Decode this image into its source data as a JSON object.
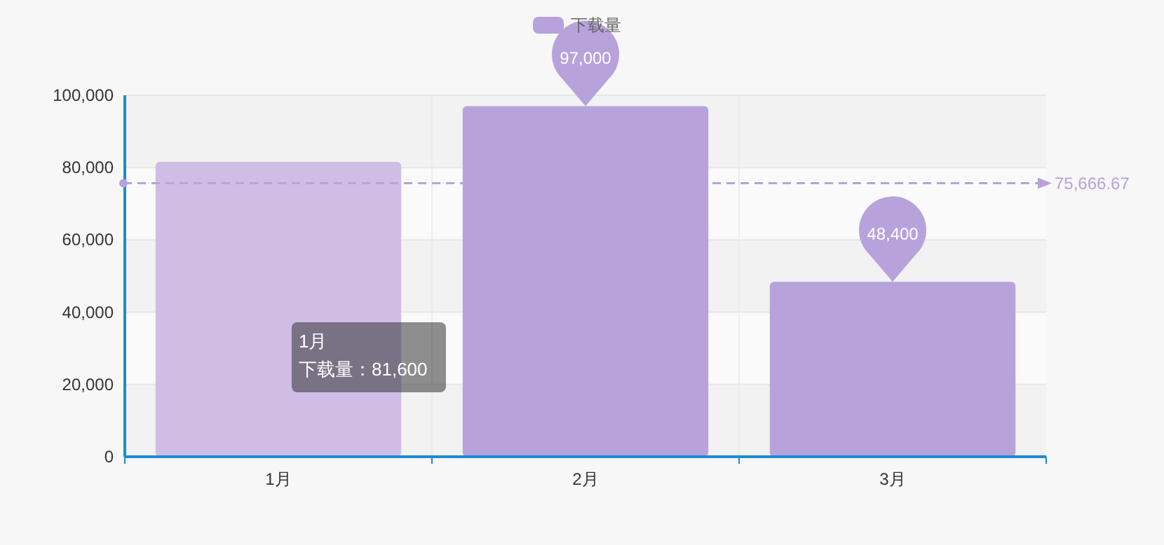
{
  "chart_data": {
    "type": "bar",
    "categories": [
      "1月",
      "2月",
      "3月"
    ],
    "series": [
      {
        "name": "下载量",
        "colors": [
          "#cfbde6",
          "#b8a2dc",
          "#b8a2dc"
        ],
        "color": "#b8a2dc",
        "values": [
          81600,
          97000,
          48400
        ],
        "value_labels": [
          null,
          "97,000",
          "48,400"
        ]
      }
    ],
    "ylim": [
      0,
      100000
    ],
    "yticks": [
      {
        "value": 0,
        "label": "0"
      },
      {
        "value": 20000,
        "label": "20,000"
      },
      {
        "value": 40000,
        "label": "40,000"
      },
      {
        "value": 60000,
        "label": "60,000"
      },
      {
        "value": 80000,
        "label": "80,000"
      },
      {
        "value": 100000,
        "label": "100,000"
      }
    ],
    "grid": "y",
    "legend": "top",
    "ref_lines": [
      {
        "axis": "y",
        "value": 75666.67,
        "label": "75,666.67",
        "color": "#b8a2dc",
        "line_style": "dashed"
      }
    ],
    "annotations": [
      "1月",
      "下载量：81,600"
    ]
  }
}
